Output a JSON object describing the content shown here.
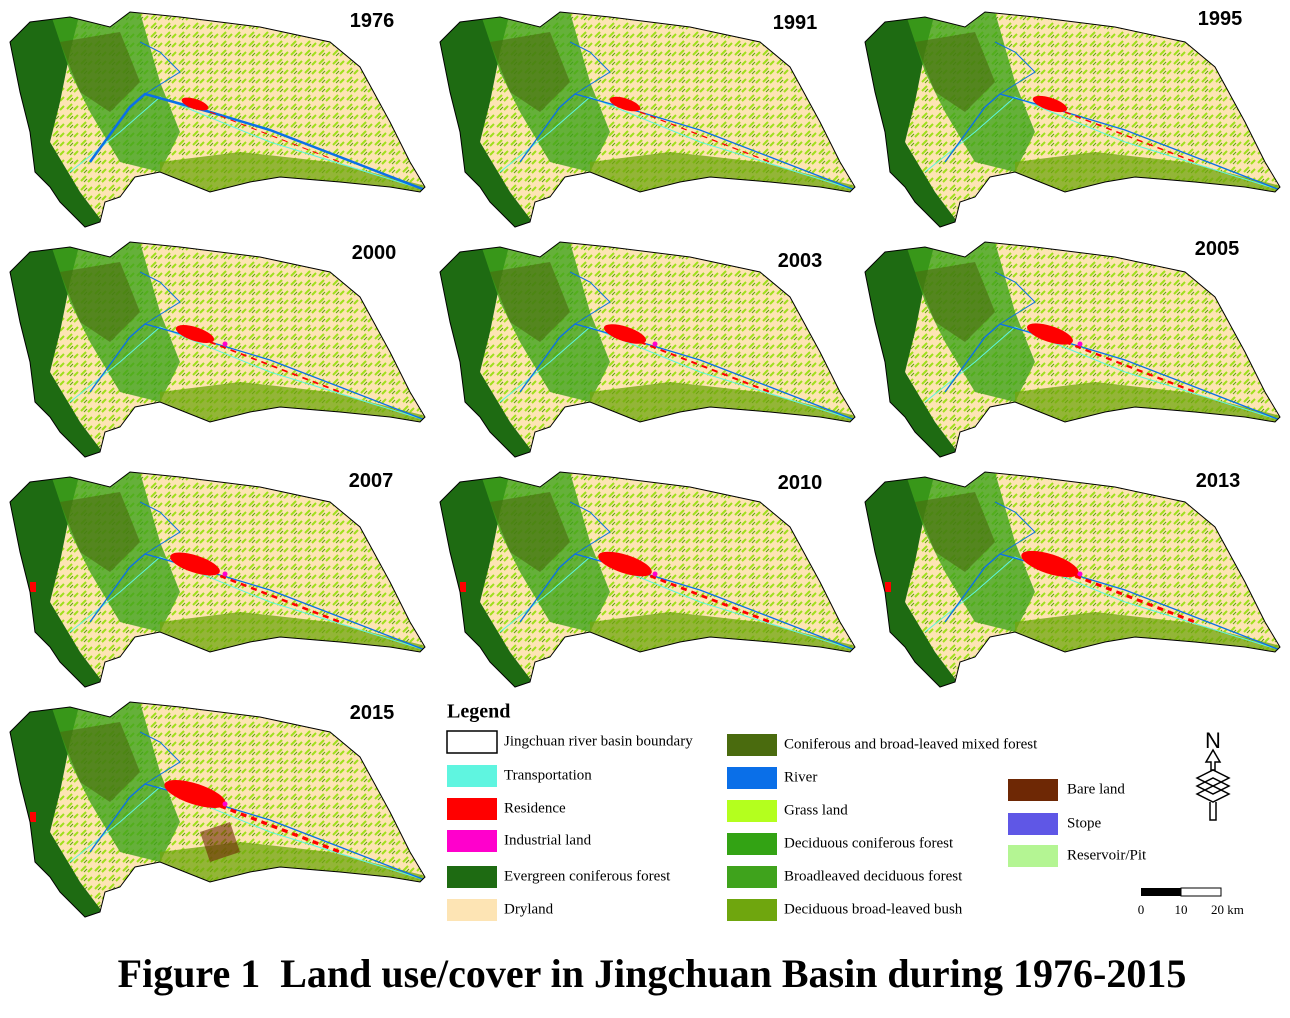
{
  "panels": [
    {
      "year": "1976"
    },
    {
      "year": "1991"
    },
    {
      "year": "1995"
    },
    {
      "year": "2000"
    },
    {
      "year": "2003"
    },
    {
      "year": "2005"
    },
    {
      "year": "2007"
    },
    {
      "year": "2010"
    },
    {
      "year": "2013"
    },
    {
      "year": "2015"
    }
  ],
  "legend": {
    "title": "Legend",
    "items": [
      {
        "label": "Jingchuan river basin boundary",
        "color": "#ffffff"
      },
      {
        "label": "Transportation",
        "color": "#5ff5e0"
      },
      {
        "label": "Residence",
        "color": "#ff0000"
      },
      {
        "label": "Industrial land",
        "color": "#ff00cc"
      },
      {
        "label": "Evergreen coniferous forest",
        "color": "#1e6b12"
      },
      {
        "label": "Dryland",
        "color": "#fde4b4"
      },
      {
        "label": "Coniferous and broad-leaved mixed forest",
        "color": "#4a6b0e"
      },
      {
        "label": "River",
        "color": "#0a6fe8"
      },
      {
        "label": "Grass land",
        "color": "#b4ff1e"
      },
      {
        "label": "Deciduous coniferous forest",
        "color": "#33a314"
      },
      {
        "label": "Broadleaved deciduous forest",
        "color": "#3fa31c"
      },
      {
        "label": "Deciduous broad-leaved bush",
        "color": "#6fa60e"
      },
      {
        "label": "Bare land",
        "color": "#6e2805"
      },
      {
        "label": "Stope",
        "color": "#5f57e6"
      },
      {
        "label": "Reservoir/Pit",
        "color": "#b4f593"
      }
    ]
  },
  "north_label": "N",
  "scale_bar": {
    "labels": [
      "0",
      "10",
      "20 km"
    ]
  },
  "caption": "Figure 1  Land use/cover in Jingchuan Basin during 1976-2015"
}
